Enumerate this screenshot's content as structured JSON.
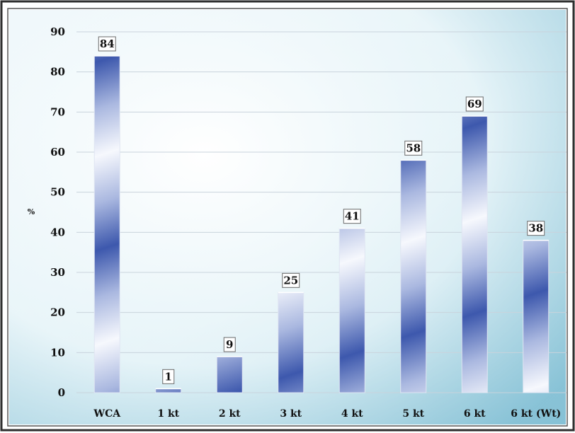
{
  "chart_data": {
    "type": "bar",
    "categories": [
      "WCA",
      "1 kt",
      "2 kt",
      "3 kt",
      "4 kt",
      "5 kt",
      "6 kt",
      "6 kt (Wt)"
    ],
    "values": [
      84,
      1,
      9,
      25,
      41,
      58,
      69,
      38
    ],
    "data_labels": [
      "84",
      "1",
      "9",
      "25",
      "41",
      "58",
      "69",
      "38"
    ],
    "title": "",
    "xlabel": "",
    "ylabel": "%",
    "ylim": [
      0,
      90
    ],
    "yticks": [
      0,
      10,
      20,
      30,
      40,
      50,
      60,
      70,
      80,
      90
    ],
    "ytick_labels": [
      "0",
      "10",
      "20",
      "30",
      "40",
      "50",
      "60",
      "70",
      "80",
      "90"
    ],
    "grid": true,
    "legend": "none",
    "colors": {
      "bar_dark": "#3f5bb0",
      "bar_light": "#f4f6fc",
      "plot_bg_inner": "#ffffff",
      "plot_bg_outer": "#9fd0df",
      "frame_border": "#333333"
    }
  }
}
